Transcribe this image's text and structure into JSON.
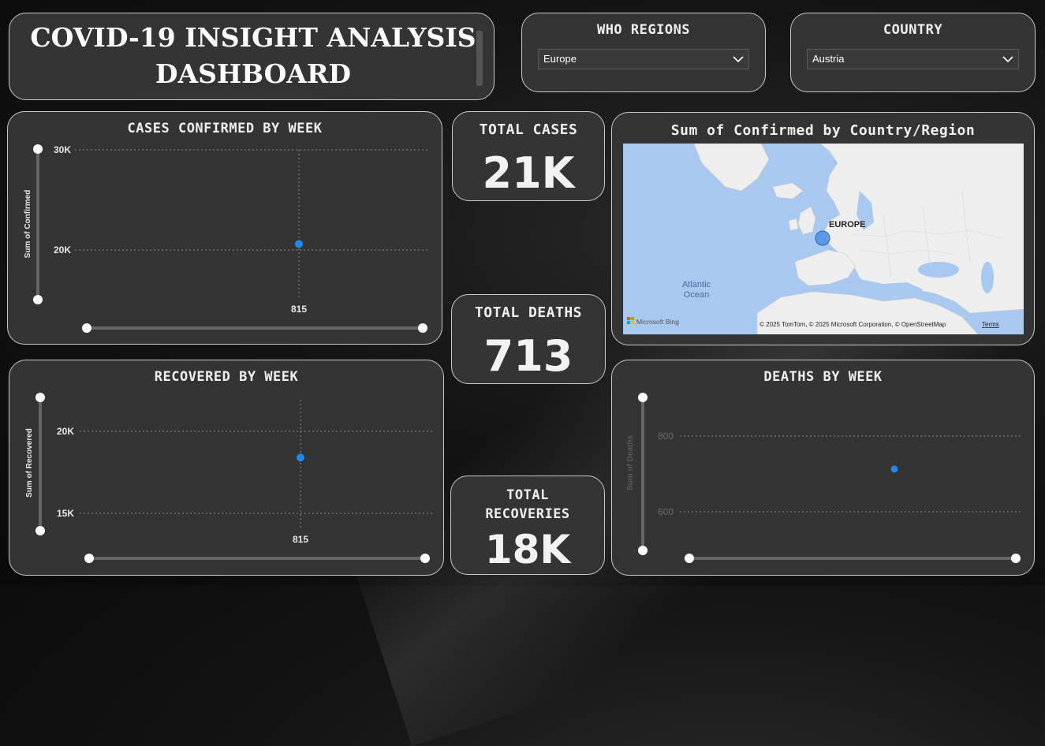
{
  "header": {
    "title": "COVID-19  INSIGHT ANALYSIS DASHBOARD"
  },
  "slicers": {
    "regions": {
      "label": "WHO REGIONS",
      "selected": "Europe"
    },
    "country": {
      "label": "COUNTRY",
      "selected": "Austria"
    }
  },
  "kpis": {
    "cases": {
      "label": "TOTAL CASES",
      "value": "21K"
    },
    "deaths": {
      "label": "TOTAL DEATHS",
      "value": "713"
    },
    "recoveries": {
      "label": "TOTAL RECOVERIES",
      "value": "18K"
    }
  },
  "map": {
    "title": "Sum of Confirmed by Country/Region",
    "region_label": "EUROPE",
    "ocean_label_1": "Atlantic",
    "ocean_label_2": "Ocean",
    "attribution": "© 2025 TomTom, © 2025 Microsoft Corporation, © OpenStreetMap",
    "terms": "Terms",
    "bing_logo": "Microsoft Bing",
    "colors": {
      "water": "#a8c8f0",
      "land": "#eeeeee",
      "bubble": "#4f8fe6"
    }
  },
  "charts": {
    "confirmed": {
      "title": "CASES CONFIRMED BY WEEK",
      "ylabel": "Sum of Confirmed",
      "yticks": [
        "30K",
        "20K"
      ],
      "xtick": "815"
    },
    "recovered": {
      "title": "RECOVERED BY WEEK",
      "ylabel": "Sum of Recovered",
      "yticks": [
        "20K",
        "15K"
      ],
      "xtick": "815"
    },
    "deaths": {
      "title": "DEATHS BY WEEK",
      "ylabel": "Sum of Deaths",
      "yticks": [
        "800",
        "600"
      ]
    }
  },
  "chart_data": [
    {
      "type": "scatter",
      "title": "CASES CONFIRMED BY WEEK",
      "ylabel": "Sum of Confirmed",
      "x": [
        815
      ],
      "y": [
        20600
      ],
      "yticks": [
        30000,
        20000
      ],
      "point_color": "#1e88f0"
    },
    {
      "type": "scatter",
      "title": "RECOVERED BY WEEK",
      "ylabel": "Sum of Recovered",
      "x": [
        815
      ],
      "y": [
        18400
      ],
      "yticks": [
        20000,
        15000
      ],
      "point_color": "#1e88f0"
    },
    {
      "type": "scatter",
      "title": "DEATHS BY WEEK",
      "ylabel": "Sum of Deaths",
      "y": [
        713
      ],
      "yticks": [
        800,
        600
      ],
      "point_color": "#1e88f0"
    }
  ]
}
